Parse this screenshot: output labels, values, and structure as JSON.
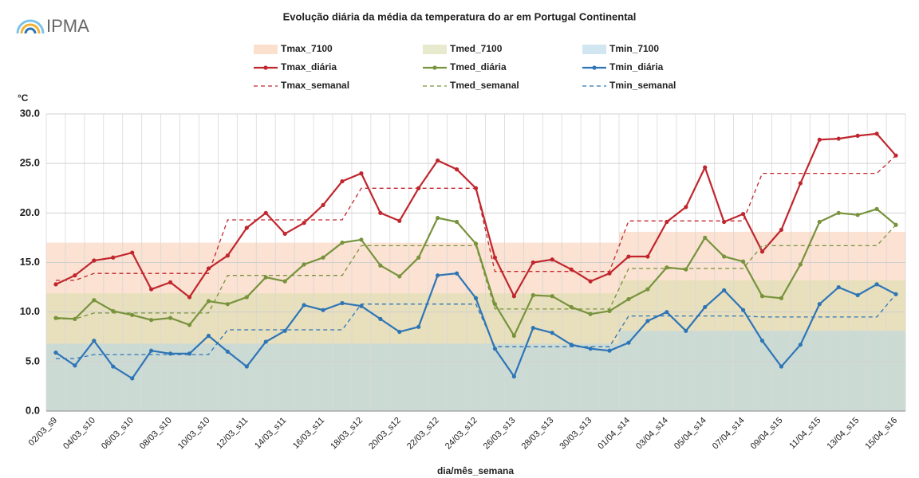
{
  "logo": {
    "text": "IPMA"
  },
  "chart_data": {
    "type": "line",
    "title": "Evolução diária da média da temperatura do ar em Portugal Continental",
    "y_label": "°C",
    "x_label": "dia/mês_semana",
    "categories": [
      "02/03_s9",
      null,
      "04/03_s10",
      null,
      "06/03_s10",
      null,
      "08/03_s10",
      null,
      "10/03_s10",
      null,
      "12/03_s11",
      null,
      "14/03_s11",
      null,
      "16/03_s11",
      null,
      "18/03_s12",
      null,
      "20/03_s12",
      null,
      "22/03_s12",
      null,
      "24/03_s12",
      null,
      "26/03_s13",
      null,
      "28/03_s13",
      null,
      "30/03_s13",
      null,
      "01/04_s14",
      null,
      "03/04_s14",
      null,
      "05/04_s14",
      null,
      "07/04_s14",
      null,
      "09/04_s15",
      null,
      "11/04_s15",
      null,
      "13/04_s15",
      null,
      "15/04_s16"
    ],
    "ylim": [
      0,
      30
    ],
    "yticks": [
      {
        "value": 0,
        "label": "0.0"
      },
      {
        "value": 5,
        "label": "5.0"
      },
      {
        "value": 10,
        "label": "10.0"
      },
      {
        "value": 15,
        "label": "15.0"
      },
      {
        "value": 20,
        "label": "20.0"
      },
      {
        "value": 25,
        "label": "25.0"
      },
      {
        "value": 30,
        "label": "30.0"
      }
    ],
    "grid": true,
    "series": [
      {
        "name": "Tmax_7100",
        "style": "band",
        "color": "#f8cbad",
        "values": [
          17,
          17,
          17,
          17,
          17,
          17,
          17,
          17,
          17,
          17,
          17,
          17,
          17,
          17,
          17,
          17,
          17,
          17,
          17,
          17,
          17,
          17,
          17,
          17,
          17,
          17,
          17,
          17,
          17,
          17,
          18.1,
          18.1,
          18.1,
          18.1,
          18.1,
          18.1,
          18.1,
          18.1,
          18.1,
          18.1,
          18.1,
          18.1,
          18.1,
          18.1,
          18.1
        ]
      },
      {
        "name": "Tmed_7100",
        "style": "band",
        "color": "#d8dcab",
        "values": [
          11.9,
          11.9,
          11.9,
          11.9,
          11.9,
          11.9,
          11.9,
          11.9,
          11.9,
          11.9,
          11.9,
          11.9,
          11.9,
          11.9,
          11.9,
          11.9,
          11.9,
          11.9,
          11.9,
          11.9,
          11.9,
          11.9,
          11.9,
          11.9,
          11.9,
          11.9,
          11.9,
          11.9,
          11.9,
          11.9,
          13.2,
          13.2,
          13.2,
          13.2,
          13.2,
          13.2,
          13.2,
          13.2,
          13.2,
          13.2,
          13.2,
          13.2,
          13.2,
          13.2,
          13.2
        ]
      },
      {
        "name": "Tmin_7100",
        "style": "band",
        "color": "#b4d6e8",
        "values": [
          6.8,
          6.8,
          6.8,
          6.8,
          6.8,
          6.8,
          6.8,
          6.8,
          6.8,
          6.8,
          6.8,
          6.8,
          6.8,
          6.8,
          6.8,
          6.8,
          6.8,
          6.8,
          6.8,
          6.8,
          6.8,
          6.8,
          6.8,
          6.8,
          6.8,
          6.8,
          6.8,
          6.8,
          6.8,
          6.8,
          8.1,
          8.1,
          8.1,
          8.1,
          8.1,
          8.1,
          8.1,
          8.1,
          8.1,
          8.1,
          8.1,
          8.1,
          8.1,
          8.1,
          8.1
        ]
      },
      {
        "name": "Tmax_diária",
        "style": "solid",
        "color": "#c0262d",
        "values": [
          12.8,
          13.7,
          15.2,
          15.5,
          16.0,
          12.3,
          13.0,
          11.5,
          14.4,
          15.7,
          18.5,
          20.0,
          17.9,
          19.0,
          20.8,
          23.2,
          24.0,
          20.0,
          19.2,
          22.5,
          25.3,
          24.4,
          22.5,
          15.5,
          11.6,
          15.0,
          15.3,
          14.3,
          13.1,
          13.9,
          15.6,
          15.6,
          19.1,
          20.6,
          24.6,
          19.1,
          19.9,
          16.1,
          18.3,
          23.0,
          27.4,
          27.5,
          27.8,
          28.0,
          25.8
        ]
      },
      {
        "name": "Tmed_diária",
        "style": "solid",
        "color": "#77933c",
        "values": [
          9.4,
          9.3,
          11.2,
          10.1,
          9.7,
          9.2,
          9.4,
          8.7,
          11.1,
          10.8,
          11.5,
          13.5,
          13.1,
          14.8,
          15.5,
          17.0,
          17.3,
          14.7,
          13.6,
          15.5,
          19.5,
          19.1,
          16.9,
          10.8,
          7.6,
          11.7,
          11.6,
          10.5,
          9.8,
          10.1,
          11.3,
          12.3,
          14.5,
          14.3,
          17.5,
          15.6,
          15.1,
          11.6,
          11.4,
          14.8,
          19.1,
          20.0,
          19.8,
          20.4,
          18.8
        ]
      },
      {
        "name": "Tmin_diária",
        "style": "solid",
        "color": "#2e75b6",
        "values": [
          5.9,
          4.6,
          7.1,
          4.5,
          3.3,
          6.1,
          5.8,
          5.8,
          7.6,
          6.0,
          4.5,
          7.0,
          8.1,
          10.7,
          10.2,
          10.9,
          10.6,
          9.3,
          8.0,
          8.5,
          13.7,
          13.9,
          11.4,
          6.3,
          3.5,
          8.4,
          7.9,
          6.7,
          6.3,
          6.1,
          6.9,
          9.1,
          10.0,
          8.1,
          10.5,
          12.2,
          10.2,
          7.1,
          4.5,
          6.7,
          10.8,
          12.5,
          11.7,
          12.8,
          11.8
        ]
      },
      {
        "name": "Tmax_semanal",
        "style": "dashed",
        "color": "#c0262d",
        "values": [
          13.2,
          13.2,
          13.9,
          13.9,
          13.9,
          13.9,
          13.9,
          13.9,
          13.9,
          19.3,
          19.3,
          19.3,
          19.3,
          19.3,
          19.3,
          19.3,
          22.5,
          22.5,
          22.5,
          22.5,
          22.5,
          22.5,
          22.5,
          14.1,
          14.1,
          14.1,
          14.1,
          14.1,
          14.1,
          14.1,
          19.2,
          19.2,
          19.2,
          19.2,
          19.2,
          19.2,
          19.2,
          24.0,
          24.0,
          24.0,
          24.0,
          24.0,
          24.0,
          24.0,
          25.8
        ]
      },
      {
        "name": "Tmed_semanal",
        "style": "dashed",
        "color": "#77933c",
        "values": [
          9.3,
          9.3,
          9.9,
          9.9,
          9.9,
          9.9,
          9.9,
          9.9,
          9.9,
          13.7,
          13.7,
          13.7,
          13.7,
          13.7,
          13.7,
          13.7,
          16.7,
          16.7,
          16.7,
          16.7,
          16.7,
          16.7,
          16.7,
          10.3,
          10.3,
          10.3,
          10.3,
          10.3,
          10.3,
          10.3,
          14.4,
          14.4,
          14.4,
          14.4,
          14.4,
          14.4,
          14.4,
          16.7,
          16.7,
          16.7,
          16.7,
          16.7,
          16.7,
          16.7,
          18.8
        ]
      },
      {
        "name": "Tmin_semanal",
        "style": "dashed",
        "color": "#2e75b6",
        "values": [
          5.3,
          5.3,
          5.7,
          5.7,
          5.7,
          5.7,
          5.7,
          5.7,
          5.7,
          8.2,
          8.2,
          8.2,
          8.2,
          8.2,
          8.2,
          8.2,
          10.8,
          10.8,
          10.8,
          10.8,
          10.8,
          10.8,
          10.8,
          6.5,
          6.5,
          6.5,
          6.5,
          6.5,
          6.5,
          6.5,
          9.6,
          9.6,
          9.6,
          9.6,
          9.6,
          9.6,
          9.6,
          9.5,
          9.5,
          9.5,
          9.5,
          9.5,
          9.5,
          9.5,
          11.8
        ]
      }
    ]
  }
}
